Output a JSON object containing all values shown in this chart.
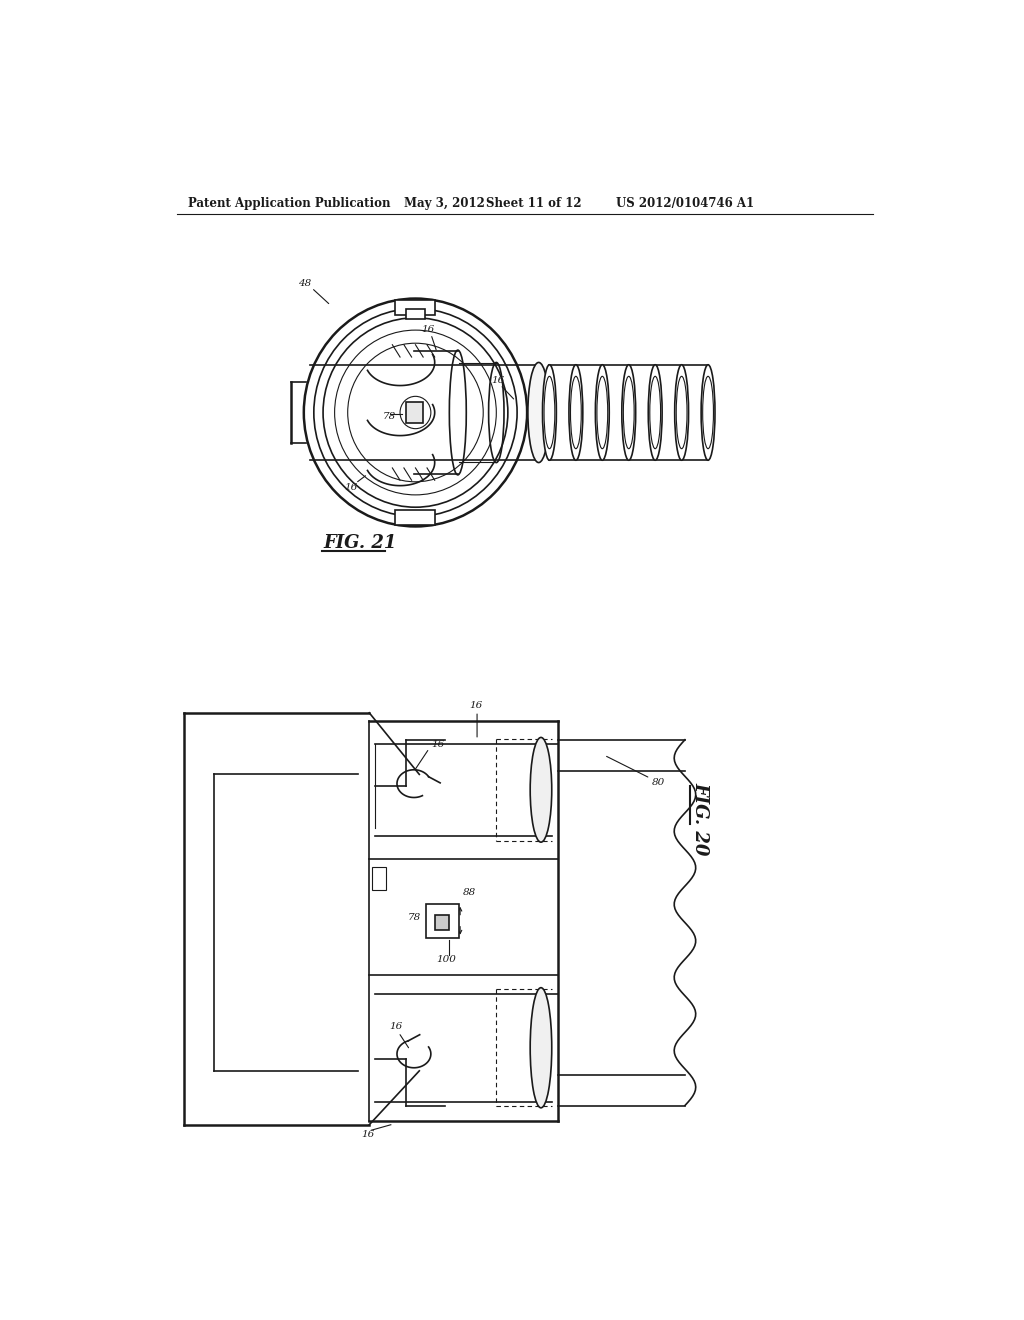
{
  "background_color": "#ffffff",
  "header_line1": "Patent Application Publication",
  "header_line2": "May 3, 2012",
  "header_line3": "Sheet 11 of 12",
  "header_line4": "US 2012/0104746 A1",
  "fig21_label": "FIG. 21",
  "fig20_label": "FIG. 20",
  "text_color": "#000000",
  "line_color": "#1a1a1a",
  "header_fontsize": 8.5,
  "label_fontsize": 7.5,
  "fig_label_fontsize": 13
}
